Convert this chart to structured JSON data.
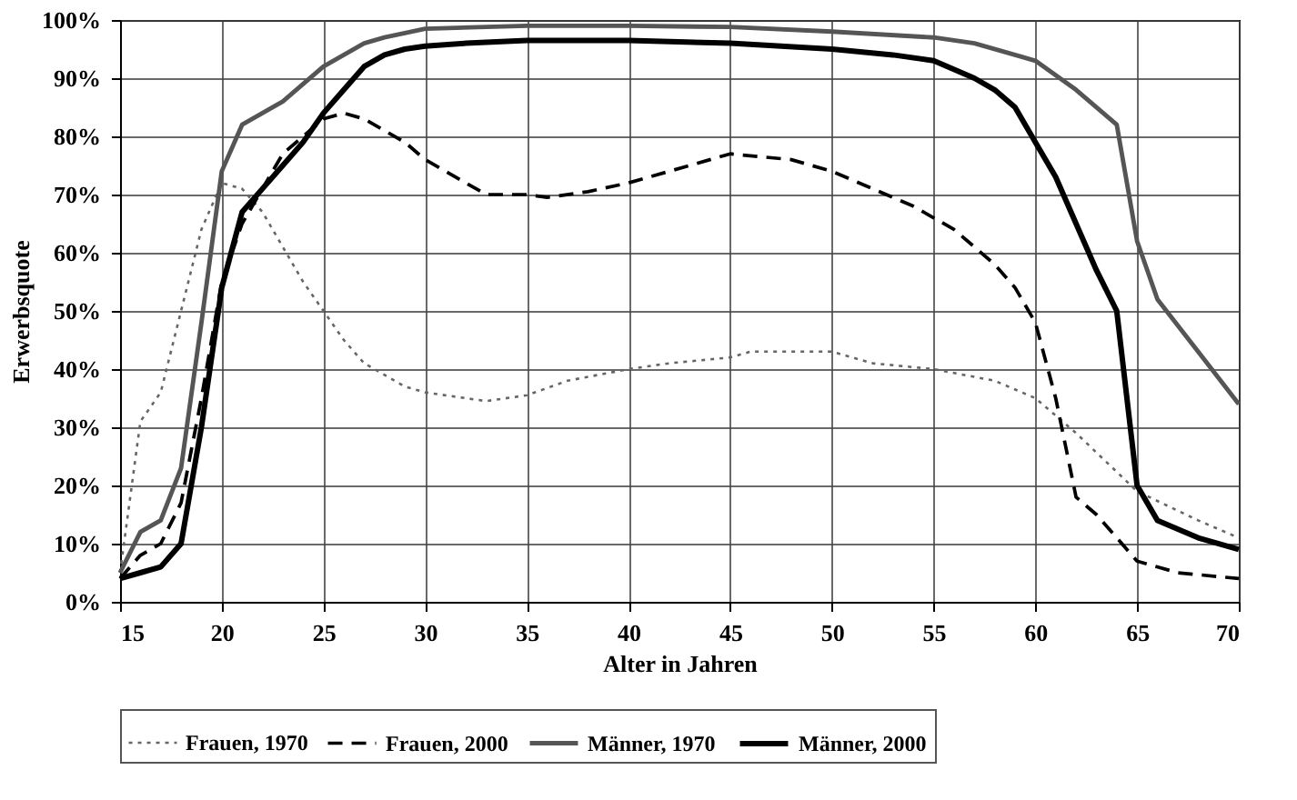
{
  "chart_data": {
    "type": "line",
    "xlabel": "Alter in Jahren",
    "ylabel": "Erwerbsquote",
    "xlim": [
      15,
      70
    ],
    "xticks": [
      15,
      20,
      25,
      30,
      35,
      40,
      45,
      50,
      55,
      60,
      65,
      70
    ],
    "ylim": [
      0,
      100
    ],
    "yticks": [
      {
        "value": 0,
        "label": "0%"
      },
      {
        "value": 10,
        "label": "10%"
      },
      {
        "value": 20,
        "label": "20%"
      },
      {
        "value": 30,
        "label": "30%"
      },
      {
        "value": 40,
        "label": "40%"
      },
      {
        "value": 50,
        "label": "50%"
      },
      {
        "value": 60,
        "label": "60%"
      },
      {
        "value": 70,
        "label": "70%"
      },
      {
        "value": 80,
        "label": "80%"
      },
      {
        "value": 90,
        "label": "90%"
      },
      {
        "value": 100,
        "label": "100%"
      }
    ],
    "grid": true,
    "legend": "bottom",
    "marker": "none",
    "series": [
      {
        "name": "Frauen, 1970",
        "color": "#666666",
        "line_style": "dotted",
        "x": [
          15,
          16,
          17,
          18,
          19,
          20,
          21,
          22,
          23,
          24,
          25,
          26,
          27,
          28,
          29,
          30,
          32,
          33,
          35,
          37,
          40,
          42,
          45,
          46,
          48,
          50,
          52,
          55,
          58,
          60,
          62,
          65,
          68,
          70
        ],
        "values": [
          5,
          31,
          36,
          50,
          64,
          72,
          71,
          67,
          61,
          55,
          50,
          45,
          41,
          39,
          37,
          36,
          35,
          34.5,
          35.5,
          38,
          40,
          41,
          42,
          43,
          43,
          43,
          41,
          40,
          38,
          35,
          29,
          19,
          14,
          11
        ]
      },
      {
        "name": "Frauen, 2000",
        "color": "#000000",
        "line_style": "dashed",
        "x": [
          15,
          16,
          17,
          18,
          19,
          20,
          21,
          22,
          23,
          24,
          25,
          26,
          27,
          28,
          29,
          30,
          32,
          33,
          35,
          36,
          38,
          40,
          42,
          44,
          45,
          48,
          50,
          52,
          54,
          56,
          58,
          59,
          60,
          61,
          62,
          63,
          64,
          65,
          67,
          70
        ],
        "values": [
          4,
          8,
          10,
          17,
          35,
          55,
          65,
          71,
          77,
          80,
          83,
          84,
          83,
          81,
          79,
          76,
          72,
          70,
          70,
          69.5,
          70.5,
          72,
          74,
          76,
          77,
          76,
          74,
          71,
          68,
          64,
          58,
          54,
          48,
          35,
          18,
          15,
          11,
          7,
          5,
          4
        ]
      },
      {
        "name": "Männer, 1970",
        "color": "#555555",
        "line_style": "solid",
        "x": [
          15,
          16,
          17,
          18,
          19,
          20,
          21,
          22,
          23,
          24,
          25,
          26,
          27,
          28,
          30,
          35,
          40,
          45,
          50,
          55,
          57,
          59,
          60,
          62,
          64,
          65,
          66,
          68,
          70
        ],
        "values": [
          5,
          12,
          14,
          23,
          48,
          74,
          82,
          84,
          86,
          89,
          92,
          94,
          96,
          97,
          98.5,
          99,
          99,
          98.8,
          98,
          97,
          96,
          94,
          93,
          88,
          82,
          62,
          52,
          43,
          34
        ]
      },
      {
        "name": "Männer, 2000",
        "color": "#000000",
        "line_style": "solid",
        "x": [
          15,
          16,
          17,
          18,
          19,
          20,
          21,
          22,
          23,
          24,
          25,
          26,
          27,
          28,
          29,
          30,
          32,
          35,
          37,
          40,
          45,
          50,
          53,
          55,
          57,
          58,
          59,
          60,
          61,
          62,
          63,
          64,
          65,
          66,
          68,
          70
        ],
        "values": [
          4,
          5,
          6,
          10,
          30,
          54,
          67,
          71,
          75,
          79,
          84,
          88,
          92,
          94,
          95,
          95.5,
          96,
          96.5,
          96.5,
          96.5,
          96,
          95,
          94,
          93,
          90,
          88,
          85,
          79,
          73,
          65,
          57,
          50,
          20,
          14,
          11,
          9
        ]
      }
    ]
  }
}
